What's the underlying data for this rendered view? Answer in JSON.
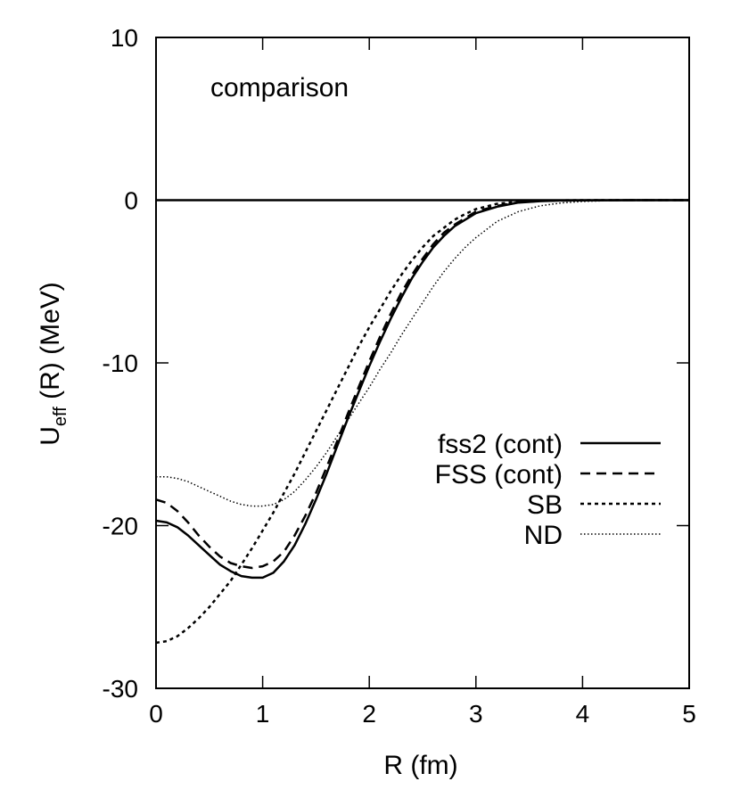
{
  "chart_data": {
    "type": "line",
    "annotation": "comparison",
    "xlabel": "R (fm)",
    "ylabel_main": "U",
    "ylabel_sub": "eff",
    "ylabel_rest": " (R) (MeV)",
    "xlim": [
      0,
      5
    ],
    "ylim": [
      -30,
      10
    ],
    "xticks": [
      0,
      1,
      2,
      3,
      4,
      5
    ],
    "yticks": [
      -30,
      -20,
      -10,
      0,
      10
    ],
    "zero_line": true,
    "grid": false,
    "legend_position": "center-right",
    "series": [
      {
        "name": "fss2 (cont)",
        "style": "solid",
        "x": [
          0,
          0.1,
          0.2,
          0.3,
          0.4,
          0.5,
          0.6,
          0.7,
          0.8,
          0.9,
          1.0,
          1.1,
          1.2,
          1.3,
          1.4,
          1.5,
          1.6,
          1.7,
          1.8,
          1.9,
          2.0,
          2.1,
          2.2,
          2.3,
          2.4,
          2.5,
          2.6,
          2.7,
          2.8,
          2.9,
          3.0,
          3.2,
          3.4,
          3.6,
          3.8,
          4.0,
          4.5,
          5.0
        ],
        "y": [
          -19.7,
          -19.8,
          -20.1,
          -20.6,
          -21.2,
          -21.8,
          -22.4,
          -22.8,
          -23.1,
          -23.2,
          -23.2,
          -22.9,
          -22.2,
          -21.2,
          -19.9,
          -18.4,
          -16.8,
          -15.1,
          -13.4,
          -11.8,
          -10.2,
          -8.7,
          -7.3,
          -6.0,
          -4.8,
          -3.8,
          -2.9,
          -2.2,
          -1.6,
          -1.2,
          -0.8,
          -0.4,
          -0.15,
          -0.06,
          -0.02,
          -0.01,
          0,
          0
        ]
      },
      {
        "name": "FSS (cont)",
        "style": "dashed",
        "x": [
          0,
          0.1,
          0.2,
          0.3,
          0.4,
          0.5,
          0.6,
          0.7,
          0.8,
          0.9,
          1.0,
          1.1,
          1.2,
          1.3,
          1.4,
          1.5,
          1.6,
          1.7,
          1.8,
          1.9,
          2.0,
          2.1,
          2.2,
          2.3,
          2.4,
          2.5,
          2.6,
          2.7,
          2.8,
          2.9,
          3.0,
          3.2,
          3.4,
          3.6,
          3.8,
          4.0,
          4.5,
          5.0
        ],
        "y": [
          -18.4,
          -18.6,
          -19.1,
          -19.8,
          -20.6,
          -21.3,
          -21.9,
          -22.3,
          -22.5,
          -22.6,
          -22.5,
          -22.2,
          -21.6,
          -20.6,
          -19.4,
          -18.0,
          -16.4,
          -14.8,
          -13.1,
          -11.5,
          -9.9,
          -8.4,
          -7.0,
          -5.7,
          -4.6,
          -3.6,
          -2.7,
          -2.0,
          -1.5,
          -1.1,
          -0.7,
          -0.35,
          -0.13,
          -0.05,
          -0.02,
          -0.01,
          0,
          0
        ]
      },
      {
        "name": "SB",
        "style": "dotted",
        "x": [
          0,
          0.1,
          0.2,
          0.3,
          0.4,
          0.5,
          0.6,
          0.7,
          0.8,
          0.9,
          1.0,
          1.1,
          1.2,
          1.3,
          1.4,
          1.5,
          1.6,
          1.7,
          1.8,
          1.9,
          2.0,
          2.1,
          2.2,
          2.3,
          2.4,
          2.5,
          2.6,
          2.7,
          2.8,
          2.9,
          3.0,
          3.2,
          3.4,
          3.6,
          3.8,
          4.0,
          4.5,
          5.0
        ],
        "y": [
          -27.2,
          -27.1,
          -26.8,
          -26.3,
          -25.7,
          -25.0,
          -24.2,
          -23.4,
          -22.4,
          -21.4,
          -20.3,
          -19.2,
          -18.0,
          -16.8,
          -15.5,
          -14.2,
          -12.9,
          -11.6,
          -10.3,
          -9.0,
          -7.8,
          -6.7,
          -5.6,
          -4.6,
          -3.7,
          -2.9,
          -2.2,
          -1.7,
          -1.2,
          -0.85,
          -0.55,
          -0.22,
          -0.08,
          -0.03,
          -0.01,
          0,
          0,
          0
        ]
      },
      {
        "name": "ND",
        "style": "fine-dotted",
        "x": [
          0,
          0.1,
          0.2,
          0.3,
          0.4,
          0.5,
          0.6,
          0.7,
          0.8,
          0.9,
          1.0,
          1.1,
          1.2,
          1.3,
          1.4,
          1.5,
          1.6,
          1.7,
          1.8,
          1.9,
          2.0,
          2.1,
          2.2,
          2.3,
          2.4,
          2.5,
          2.6,
          2.7,
          2.8,
          2.9,
          3.0,
          3.2,
          3.4,
          3.6,
          3.8,
          4.0,
          4.2,
          4.5,
          5.0
        ],
        "y": [
          -17.0,
          -17.0,
          -17.1,
          -17.3,
          -17.6,
          -17.9,
          -18.2,
          -18.5,
          -18.7,
          -18.8,
          -18.8,
          -18.7,
          -18.4,
          -17.9,
          -17.2,
          -16.4,
          -15.5,
          -14.5,
          -13.5,
          -12.5,
          -11.5,
          -10.4,
          -9.4,
          -8.3,
          -7.3,
          -6.3,
          -5.3,
          -4.4,
          -3.6,
          -2.9,
          -2.3,
          -1.3,
          -0.7,
          -0.35,
          -0.17,
          -0.08,
          -0.04,
          -0.01,
          0
        ]
      }
    ]
  }
}
